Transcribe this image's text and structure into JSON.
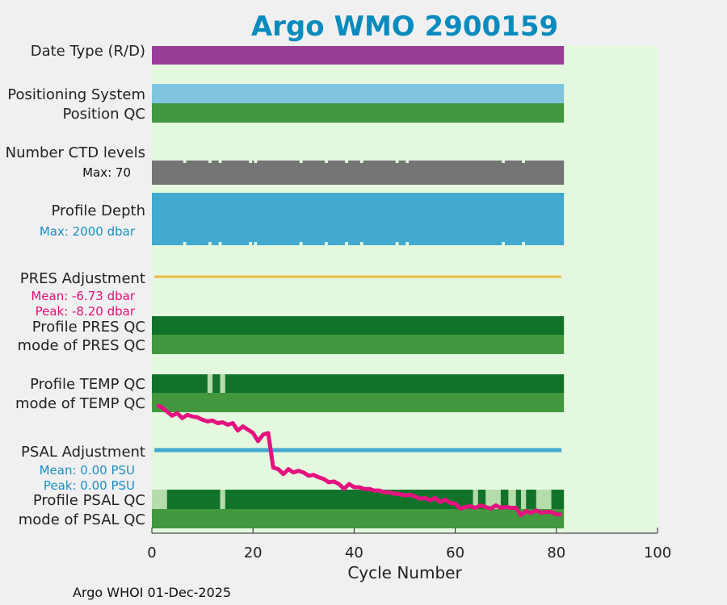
{
  "title": "Argo WMO 2900159",
  "footer": "Argo WHOI 01-Dec-2025",
  "colors": {
    "plot_bg": "#e3f8df",
    "title": "#0a8bbd",
    "purple": "#993d99",
    "light_blue": "#7fc5df",
    "mid_green": "#43983f",
    "dark_green": "#11732a",
    "pale_green": "#b5dcab",
    "gray": "#757575",
    "depth_blue": "#42a9cf",
    "orange": "#f0b846",
    "magenta": "#e3127f",
    "cyan_text": "#1b8fc3",
    "magenta_text": "#e01077"
  },
  "chart_data": {
    "type": "bar",
    "orientation": "horizontal-timeline",
    "xlabel": "Cycle Number",
    "xlim": [
      0,
      100
    ],
    "xticks": [
      0,
      20,
      40,
      60,
      80,
      100
    ],
    "last_cycle": 81.5,
    "row_labels": {
      "date_type": "Date Type (R/D)",
      "positioning_system": "Positioning System",
      "position_qc": "Position QC",
      "ctd_levels": "Number CTD levels",
      "ctd_max": "Max: 70",
      "profile_depth": "Profile Depth",
      "depth_max": "Max: 2000 dbar",
      "pres_adjustment": "PRES Adjustment",
      "pres_mean": "Mean: -6.73 dbar",
      "pres_peak": "Peak: -8.20 dbar",
      "profile_pres_qc": "Profile PRES QC",
      "mode_pres_qc": "mode of PRES QC",
      "profile_temp_qc": "Profile TEMP QC",
      "mode_temp_qc": "mode of TEMP QC",
      "psal_adjustment": "PSAL Adjustment",
      "psal_mean": "Mean: 0.00 PSU",
      "psal_peak": "Peak: 0.00 PSU",
      "profile_psal_qc": "Profile PSAL QC",
      "mode_psal_qc": "mode of PSAL QC"
    },
    "ctd_gap_cycles": [
      6.5,
      11.5,
      13.5,
      19.5,
      20.5,
      29.5,
      34.5,
      38.5,
      41.5,
      48.5,
      50.5,
      69.5,
      73.5
    ],
    "temp_qc_pale_cycles": [
      [
        11,
        12
      ],
      [
        13.5,
        14.5
      ]
    ],
    "psal_qc_pale_cycles": [
      [
        0,
        3
      ],
      [
        13.5,
        14.5
      ],
      [
        63.5,
        64.5
      ],
      [
        66,
        69
      ],
      [
        70.5,
        72
      ],
      [
        73,
        74
      ],
      [
        76,
        79
      ]
    ],
    "psal_adjustment_series": {
      "name": "PSAL adjustment trace",
      "x": [
        1,
        2,
        3,
        4,
        5,
        6,
        7,
        8,
        9,
        10,
        11,
        12,
        13,
        14,
        15,
        16,
        17,
        18,
        19,
        20,
        21,
        22,
        23,
        24,
        25,
        26,
        27,
        28,
        29,
        30,
        31,
        32,
        33,
        34,
        35,
        36,
        37,
        38,
        39,
        40,
        41,
        42,
        43,
        44,
        45,
        46,
        47,
        48,
        49,
        50,
        51,
        52,
        53,
        54,
        55,
        56,
        57,
        58,
        59,
        60,
        61,
        62,
        63,
        64,
        65,
        66,
        67,
        68,
        69,
        70,
        71,
        72,
        73,
        74,
        75,
        76,
        77,
        78,
        79,
        80,
        81
      ],
      "y": [
        0.02,
        0.05,
        0.1,
        0.15,
        0.12,
        0.18,
        0.14,
        0.16,
        0.17,
        0.2,
        0.22,
        0.21,
        0.24,
        0.23,
        0.26,
        0.24,
        0.33,
        0.28,
        0.32,
        0.36,
        0.46,
        0.38,
        0.36,
        0.78,
        0.8,
        0.86,
        0.8,
        0.84,
        0.82,
        0.84,
        0.88,
        0.87,
        0.9,
        0.92,
        0.96,
        0.95,
        0.98,
        1.04,
        0.98,
        1.02,
        1.02,
        1.04,
        1.04,
        1.06,
        1.06,
        1.08,
        1.08,
        1.1,
        1.1,
        1.12,
        1.11,
        1.13,
        1.16,
        1.15,
        1.18,
        1.15,
        1.2,
        1.17,
        1.21,
        1.22,
        1.28,
        1.26,
        1.25,
        1.27,
        1.24,
        1.26,
        1.28,
        1.24,
        1.27,
        1.26,
        1.27,
        1.27,
        1.36,
        1.31,
        1.33,
        1.3,
        1.33,
        1.32,
        1.32,
        1.35,
        1.35
      ]
    }
  }
}
